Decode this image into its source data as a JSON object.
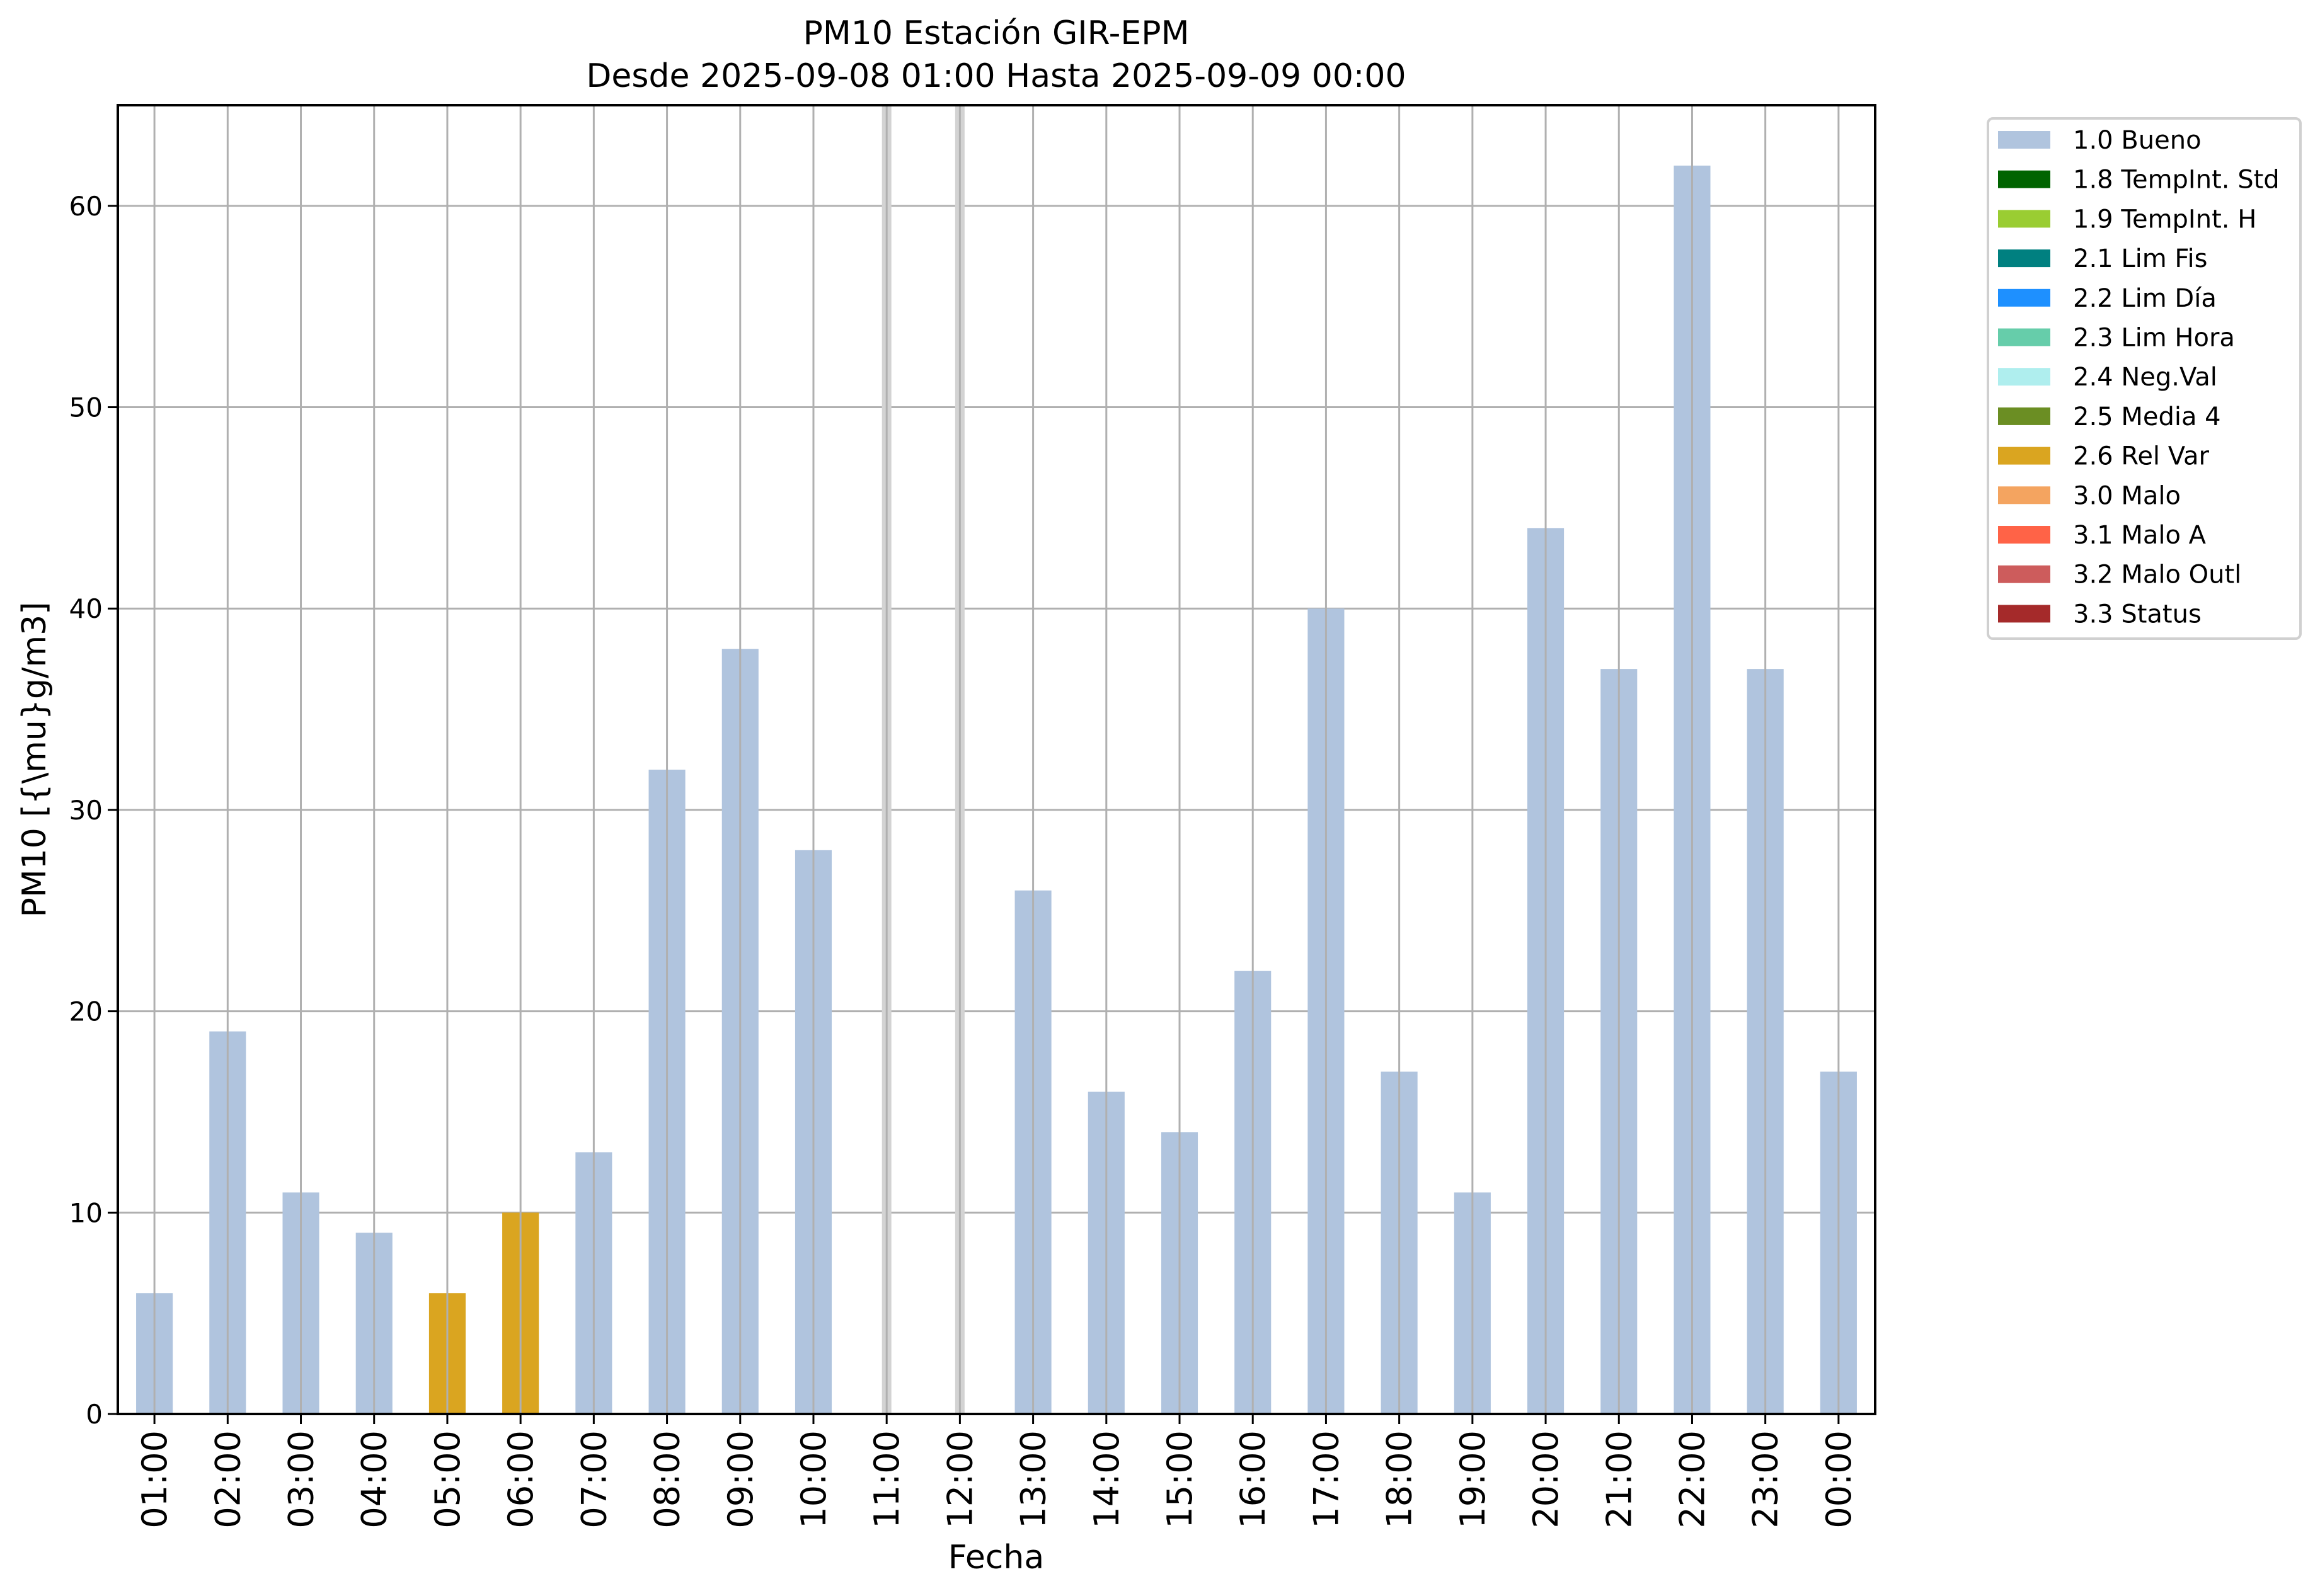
{
  "chart_data": {
    "type": "bar",
    "title": "PM10 Estación GIR-EPM",
    "subtitle": "Desde 2025-09-08 01:00 Hasta 2025-09-09 00:00",
    "xlabel": "Fecha",
    "ylabel": "PM10 [{\\mu}g/m3]",
    "ylim": [
      0,
      65
    ],
    "yticks": [
      0,
      10,
      20,
      30,
      40,
      50,
      60
    ],
    "grid": true,
    "legend_position": "outside-right-top",
    "categories": [
      "01:00",
      "02:00",
      "03:00",
      "04:00",
      "05:00",
      "06:00",
      "07:00",
      "08:00",
      "09:00",
      "10:00",
      "11:00",
      "12:00",
      "13:00",
      "14:00",
      "15:00",
      "16:00",
      "17:00",
      "18:00",
      "19:00",
      "20:00",
      "21:00",
      "22:00",
      "23:00",
      "00:00"
    ],
    "values": [
      6,
      19,
      11,
      9,
      6,
      10,
      13,
      32,
      38,
      28,
      null,
      null,
      26,
      16,
      14,
      22,
      40,
      17,
      11,
      44,
      37,
      62,
      37,
      17
    ],
    "flags": [
      "1.0 Bueno",
      "1.0 Bueno",
      "1.0 Bueno",
      "1.0 Bueno",
      "2.6 Rel Var",
      "2.6 Rel Var",
      "1.0 Bueno",
      "1.0 Bueno",
      "1.0 Bueno",
      "1.0 Bueno",
      "missing",
      "missing",
      "1.0 Bueno",
      "1.0 Bueno",
      "1.0 Bueno",
      "1.0 Bueno",
      "1.0 Bueno",
      "1.0 Bueno",
      "1.0 Bueno",
      "1.0 Bueno",
      "1.0 Bueno",
      "1.0 Bueno",
      "1.0 Bueno",
      "1.0 Bueno"
    ],
    "missing_color": "#d3d3d3",
    "legend": [
      {
        "label": "1.0 Bueno",
        "color": "#b0c4de"
      },
      {
        "label": "1.8 TempInt. Std",
        "color": "#006400"
      },
      {
        "label": "1.9 TempInt. H",
        "color": "#9acd32"
      },
      {
        "label": "2.1 Lim Fis",
        "color": "#008080"
      },
      {
        "label": "2.2 Lim Día",
        "color": "#1e90ff"
      },
      {
        "label": "2.3 Lim Hora",
        "color": "#66cdaa"
      },
      {
        "label": "2.4 Neg.Val",
        "color": "#afeeee"
      },
      {
        "label": "2.5 Media 4",
        "color": "#6b8e23"
      },
      {
        "label": "2.6 Rel Var",
        "color": "#daa520"
      },
      {
        "label": "3.0 Malo",
        "color": "#f4a460"
      },
      {
        "label": "3.1 Malo A",
        "color": "#ff6347"
      },
      {
        "label": "3.2 Malo Outl",
        "color": "#cd5c5c"
      },
      {
        "label": "3.3 Status",
        "color": "#a52a2a"
      }
    ]
  }
}
